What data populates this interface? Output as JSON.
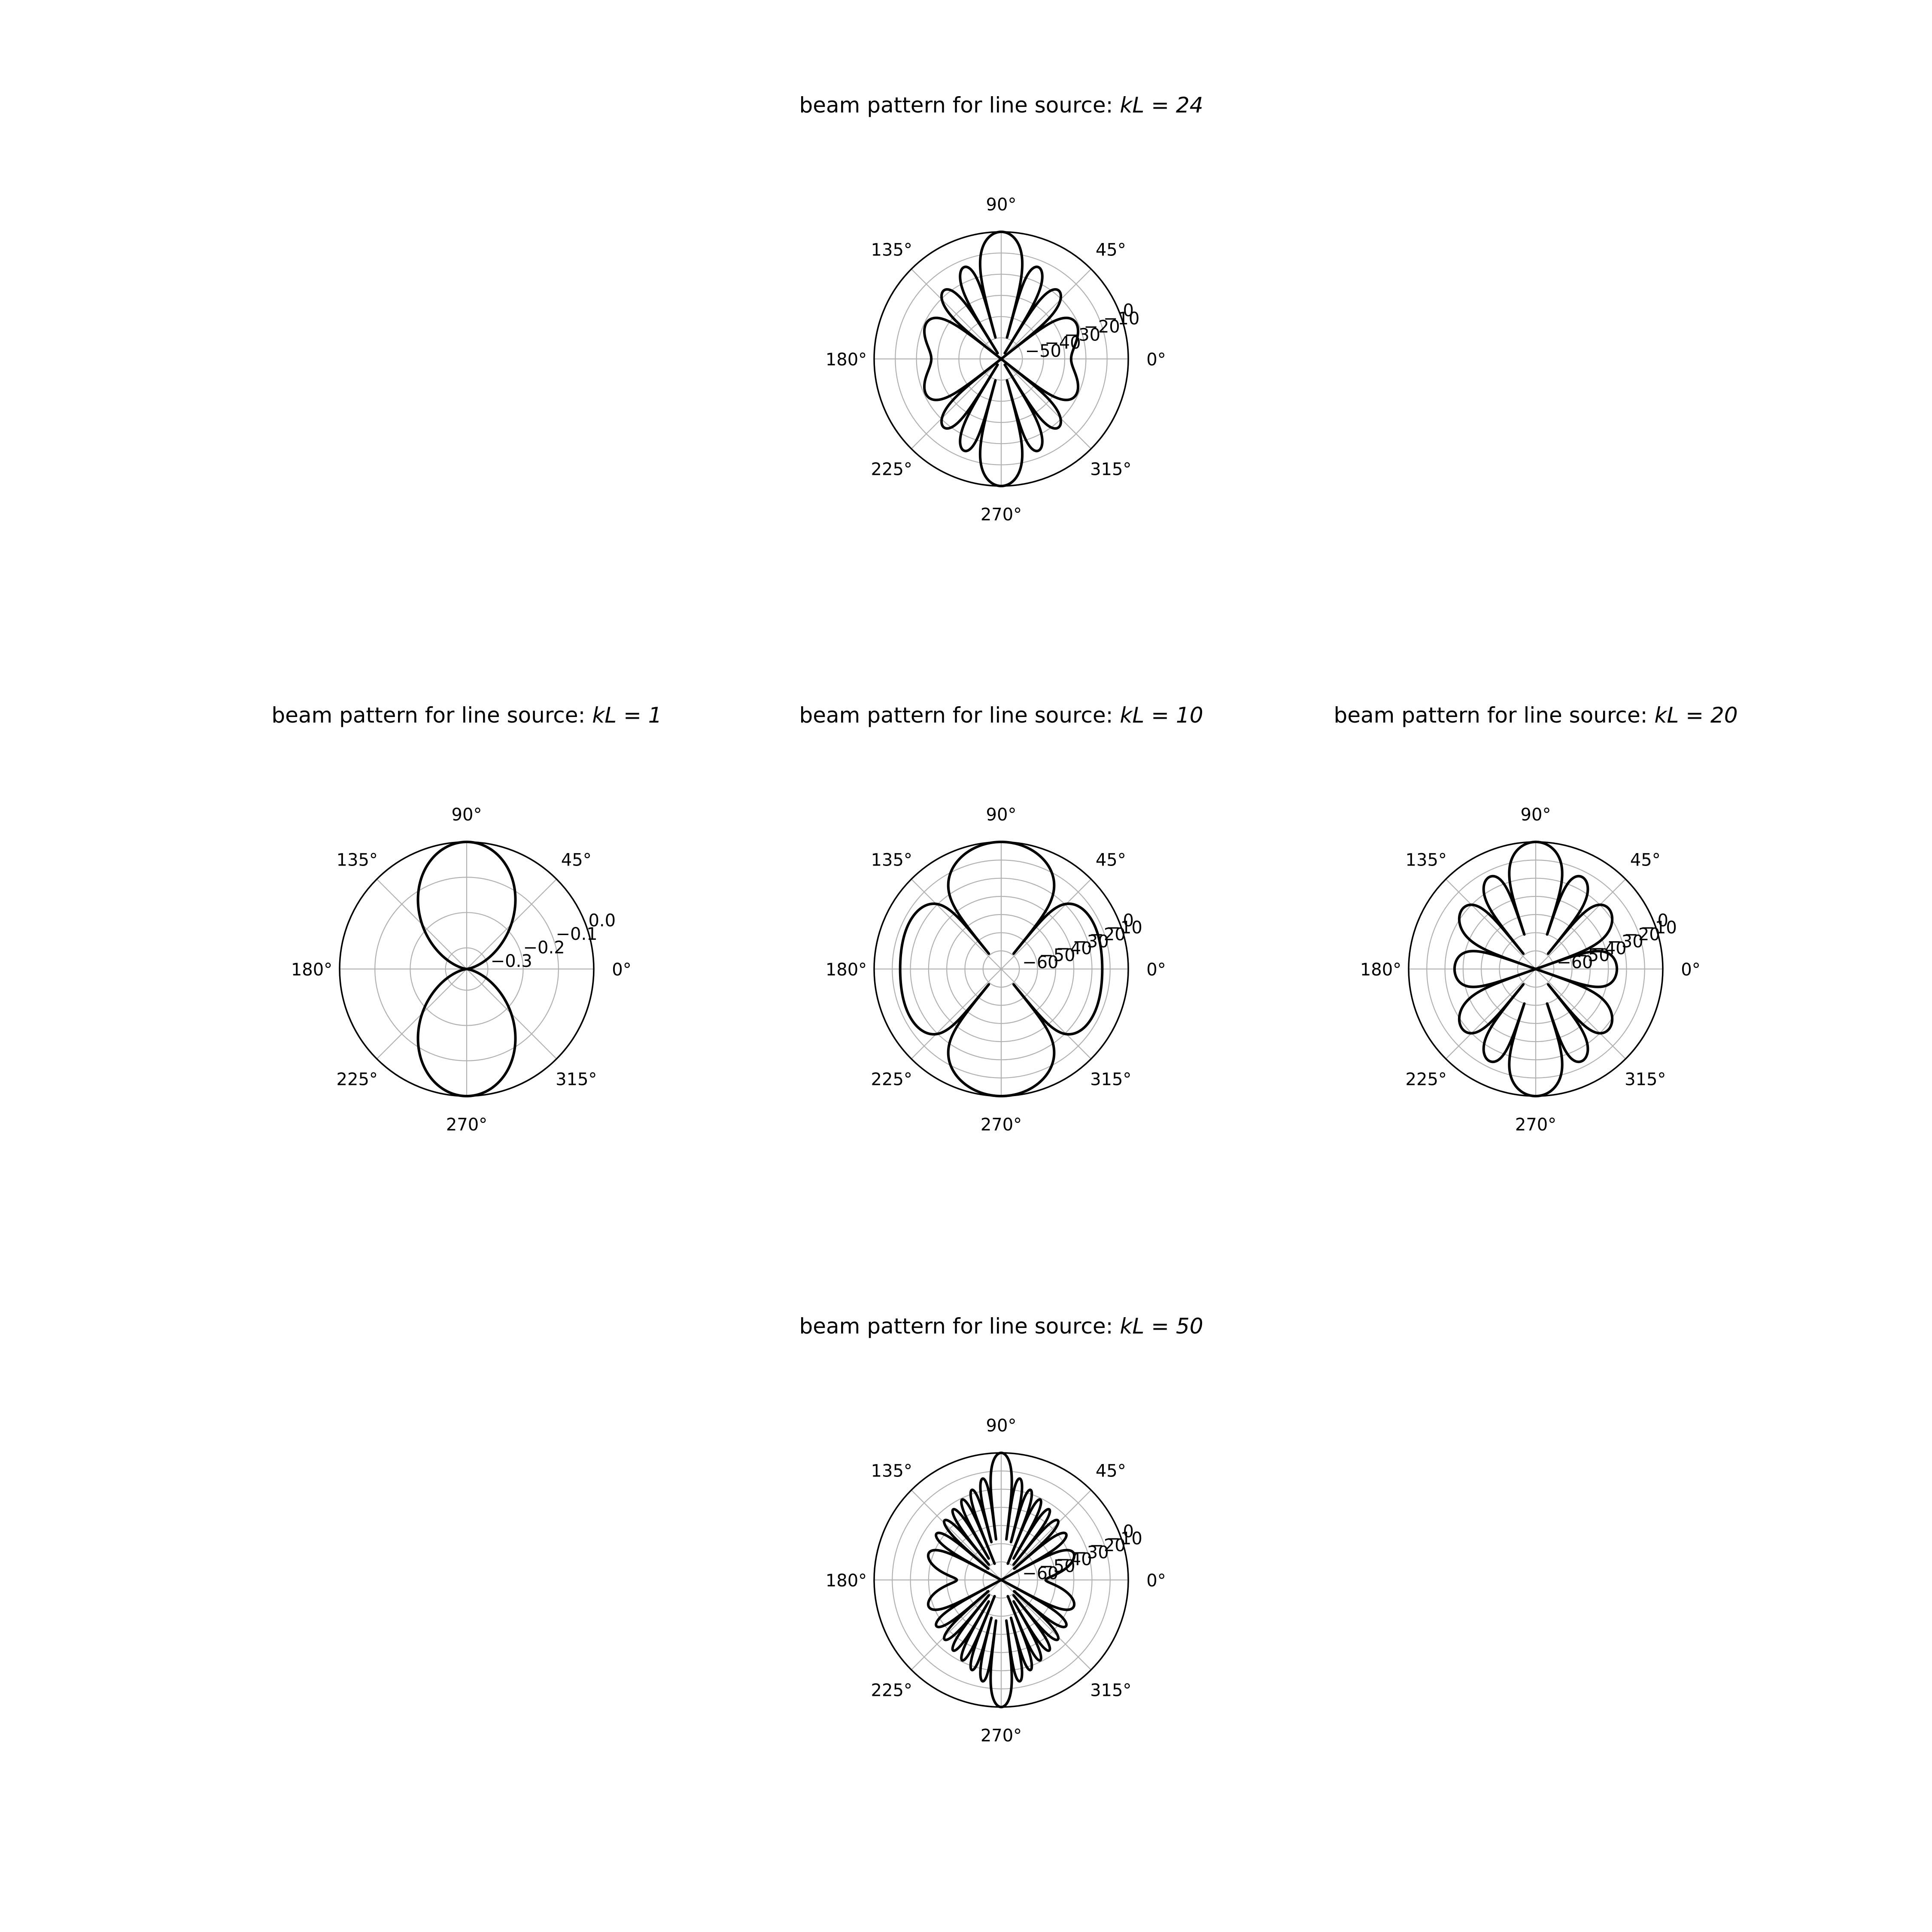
{
  "chart_data": [
    {
      "type": "polar-line",
      "title_prefix": "beam pattern for line source: ",
      "title_math": "kL = 24",
      "kL": 24,
      "theta_tick_labels": [
        "0°",
        "45°",
        "90°",
        "135°",
        "180°",
        "225°",
        "270°",
        "315°"
      ],
      "r_tick_labels": [
        "−50",
        "−40",
        "−30",
        "−20",
        "−10",
        "0"
      ],
      "r_range": [
        -60,
        0
      ],
      "r_unit": "dB",
      "grid": true
    },
    {
      "type": "polar-line",
      "title_prefix": "beam pattern for line source: ",
      "title_math": "kL = 1",
      "kL": 1,
      "theta_tick_labels": [
        "0°",
        "45°",
        "90°",
        "135°",
        "180°",
        "225°",
        "270°",
        "315°"
      ],
      "r_tick_labels": [
        "−0.3",
        "−0.2",
        "−0.1",
        "0.0"
      ],
      "r_range": [
        -0.36,
        0
      ],
      "r_unit": "dB",
      "grid": true
    },
    {
      "type": "polar-line",
      "title_prefix": "beam pattern for line source: ",
      "title_math": "kL = 10",
      "kL": 10,
      "theta_tick_labels": [
        "0°",
        "45°",
        "90°",
        "135°",
        "180°",
        "225°",
        "270°",
        "315°"
      ],
      "r_tick_labels": [
        "−60",
        "−50",
        "−40",
        "−30",
        "−20",
        "−10",
        "0"
      ],
      "r_range": [
        -70,
        0
      ],
      "r_unit": "dB",
      "grid": true
    },
    {
      "type": "polar-line",
      "title_prefix": "beam pattern for line source: ",
      "title_math": "kL = 20",
      "kL": 20,
      "theta_tick_labels": [
        "0°",
        "45°",
        "90°",
        "135°",
        "180°",
        "225°",
        "270°",
        "315°"
      ],
      "r_tick_labels": [
        "−60",
        "−50",
        "−40",
        "−30",
        "−20",
        "−10",
        "0"
      ],
      "r_range": [
        -70,
        0
      ],
      "r_unit": "dB",
      "grid": true
    },
    {
      "type": "polar-line",
      "title_prefix": "beam pattern for line source: ",
      "title_math": "kL = 50",
      "kL": 50,
      "theta_tick_labels": [
        "0°",
        "45°",
        "90°",
        "135°",
        "180°",
        "225°",
        "270°",
        "315°"
      ],
      "r_tick_labels": [
        "−60",
        "−50",
        "−40",
        "−30",
        "−20",
        "−10",
        "0"
      ],
      "r_range": [
        -70,
        0
      ],
      "r_unit": "dB",
      "grid": true
    }
  ]
}
